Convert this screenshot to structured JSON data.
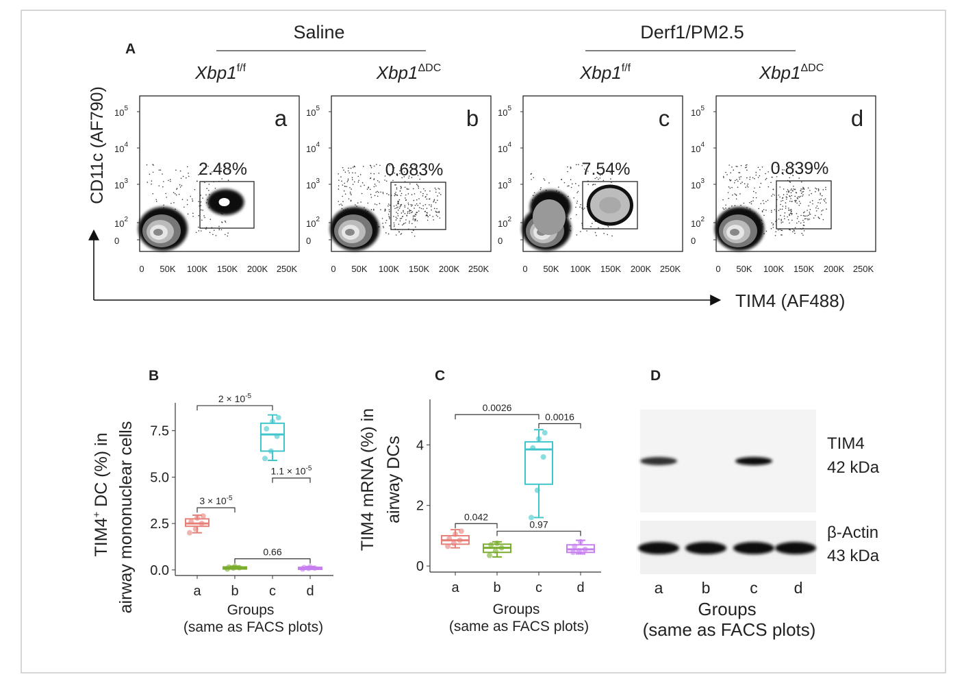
{
  "panelA": {
    "label": "A",
    "group_saline": "Saline",
    "group_derf": "Derf1/PM2.5",
    "geno_ff": "Xbp1",
    "geno_ff_sup": "f/f",
    "geno_dc": "Xbp1",
    "geno_dc_sup": "ΔDC",
    "ylabel": "CD11c (AF790)",
    "xlabel": "TIM4 (AF488)",
    "yticks": [
      "10",
      "10",
      "10",
      "10",
      "0"
    ],
    "ytick_exp": [
      "5",
      "4",
      "3",
      "2",
      ""
    ],
    "xticks": [
      "0",
      "50K",
      "100K",
      "150K",
      "200K",
      "250K"
    ],
    "plots": [
      {
        "letter": "a",
        "pct": "2.48%"
      },
      {
        "letter": "b",
        "pct": "0.683%"
      },
      {
        "letter": "c",
        "pct": "7.54%"
      },
      {
        "letter": "d",
        "pct": "0.839%"
      }
    ]
  },
  "panelB": {
    "label": "B",
    "ylabel1": "TIM4",
    "ylabel_sup": "+",
    "ylabel2": " DC (%) in",
    "ylabel3": "airway mononuclear cells",
    "xlabel1": "Groups",
    "xlabel2": "(same as FACS plots)",
    "yticks": [
      "0.0",
      "2.5",
      "5.0",
      "7.5"
    ],
    "brackets": [
      "2 × 10",
      "3 × 10",
      "1.1 × 10",
      "0.66"
    ],
    "bracket_exp": [
      "-5",
      "-5",
      "-5",
      ""
    ]
  },
  "panelC": {
    "label": "C",
    "ylabel1": "TIM4 mRNA (%) in",
    "ylabel2": "airway DCs",
    "xlabel1": "Groups",
    "xlabel2": "(same as FACS plots)",
    "yticks": [
      "0",
      "2",
      "4"
    ],
    "brackets": [
      "0.0026",
      "0.0016",
      "0.042",
      "0.97"
    ]
  },
  "panelD": {
    "label": "D",
    "band1_name": "TIM4",
    "band1_kda": "42 kDa",
    "band2_name": "β-Actin",
    "band2_kda": "43 kDa",
    "xlabel1": "Groups",
    "xlabel2": "(same as FACS plots)"
  },
  "chart_data": [
    {
      "type": "box",
      "title": "",
      "xlabel": "Groups (same as FACS plots)",
      "ylabel": "TIM4+ DC (%) in airway mononuclear cells",
      "categories": [
        "a",
        "b",
        "c",
        "d"
      ],
      "ylim": [
        -0.3,
        9.0
      ],
      "colors": [
        "#e8807a",
        "#7aad2e",
        "#3fc6cc",
        "#c77ff0"
      ],
      "boxes": [
        {
          "min": 2.0,
          "q1": 2.35,
          "median": 2.5,
          "q3": 2.75,
          "max": 2.95,
          "points": [
            2.0,
            2.2,
            2.5,
            2.6,
            2.8,
            2.9
          ]
        },
        {
          "min": 0.05,
          "q1": 0.08,
          "median": 0.12,
          "q3": 0.16,
          "max": 0.2,
          "points": [
            0.05,
            0.1,
            0.12,
            0.15,
            0.18
          ]
        },
        {
          "min": 5.9,
          "q1": 6.4,
          "median": 7.3,
          "q3": 7.9,
          "max": 8.35,
          "points": [
            6.0,
            6.4,
            7.2,
            7.6,
            8.0,
            8.2
          ]
        },
        {
          "min": 0.04,
          "q1": 0.07,
          "median": 0.1,
          "q3": 0.14,
          "max": 0.18,
          "points": [
            0.05,
            0.08,
            0.1,
            0.13,
            0.16
          ]
        }
      ],
      "comparisons": [
        {
          "from": "a",
          "to": "c",
          "y": 8.85,
          "label": "2 × 10^-5"
        },
        {
          "from": "a",
          "to": "b",
          "y": 3.35,
          "label": "3 × 10^-5"
        },
        {
          "from": "c",
          "to": "d",
          "y": 4.95,
          "label": "1.1 × 10^-5"
        },
        {
          "from": "b",
          "to": "d",
          "y": 0.6,
          "label": "0.66"
        }
      ]
    },
    {
      "type": "box",
      "title": "",
      "xlabel": "Groups (same as FACS plots)",
      "ylabel": "TIM4 mRNA (%) in airway DCs",
      "categories": [
        "a",
        "b",
        "c",
        "d"
      ],
      "ylim": [
        -0.2,
        5.5
      ],
      "colors": [
        "#e8807a",
        "#7aad2e",
        "#3fc6cc",
        "#c77ff0"
      ],
      "boxes": [
        {
          "min": 0.6,
          "q1": 0.72,
          "median": 0.85,
          "q3": 1.0,
          "max": 1.2,
          "points": [
            0.65,
            0.75,
            0.85,
            0.9,
            1.05,
            1.15
          ]
        },
        {
          "min": 0.3,
          "q1": 0.45,
          "median": 0.6,
          "q3": 0.72,
          "max": 0.8,
          "points": [
            0.35,
            0.5,
            0.6,
            0.7,
            0.75
          ]
        },
        {
          "min": 1.6,
          "q1": 2.7,
          "median": 3.85,
          "q3": 4.1,
          "max": 4.5,
          "points": [
            1.6,
            2.5,
            3.6,
            3.9,
            4.2,
            4.4
          ]
        },
        {
          "min": 0.4,
          "q1": 0.45,
          "median": 0.55,
          "q3": 0.7,
          "max": 0.85,
          "points": [
            0.45,
            0.5,
            0.55,
            0.65,
            0.8
          ]
        }
      ],
      "comparisons": [
        {
          "from": "a",
          "to": "c",
          "y": 5.0,
          "label": "0.0026"
        },
        {
          "from": "c",
          "to": "d",
          "y": 4.7,
          "label": "0.0016"
        },
        {
          "from": "a",
          "to": "b",
          "y": 1.4,
          "label": "0.042"
        },
        {
          "from": "b",
          "to": "d",
          "y": 1.15,
          "label": "0.97"
        }
      ]
    },
    {
      "type": "flow-cytometry",
      "xlabel": "TIM4 (AF488)",
      "ylabel": "CD11c (AF790)",
      "panels": [
        {
          "name": "a",
          "group": "Saline",
          "genotype": "Xbp1 f/f",
          "gate_percent": 2.48
        },
        {
          "name": "b",
          "group": "Saline",
          "genotype": "Xbp1 ΔDC",
          "gate_percent": 0.683
        },
        {
          "name": "c",
          "group": "Derf1/PM2.5",
          "genotype": "Xbp1 f/f",
          "gate_percent": 7.54
        },
        {
          "name": "d",
          "group": "Derf1/PM2.5",
          "genotype": "Xbp1 ΔDC",
          "gate_percent": 0.839
        }
      ]
    },
    {
      "type": "western-blot",
      "lanes": [
        "a",
        "b",
        "c",
        "d"
      ],
      "bands": [
        {
          "name": "TIM4",
          "kda": 42,
          "intensity": [
            0.55,
            0.0,
            1.0,
            0.0
          ]
        },
        {
          "name": "β-Actin",
          "kda": 43,
          "intensity": [
            1.0,
            1.0,
            1.0,
            1.0
          ]
        }
      ]
    }
  ]
}
